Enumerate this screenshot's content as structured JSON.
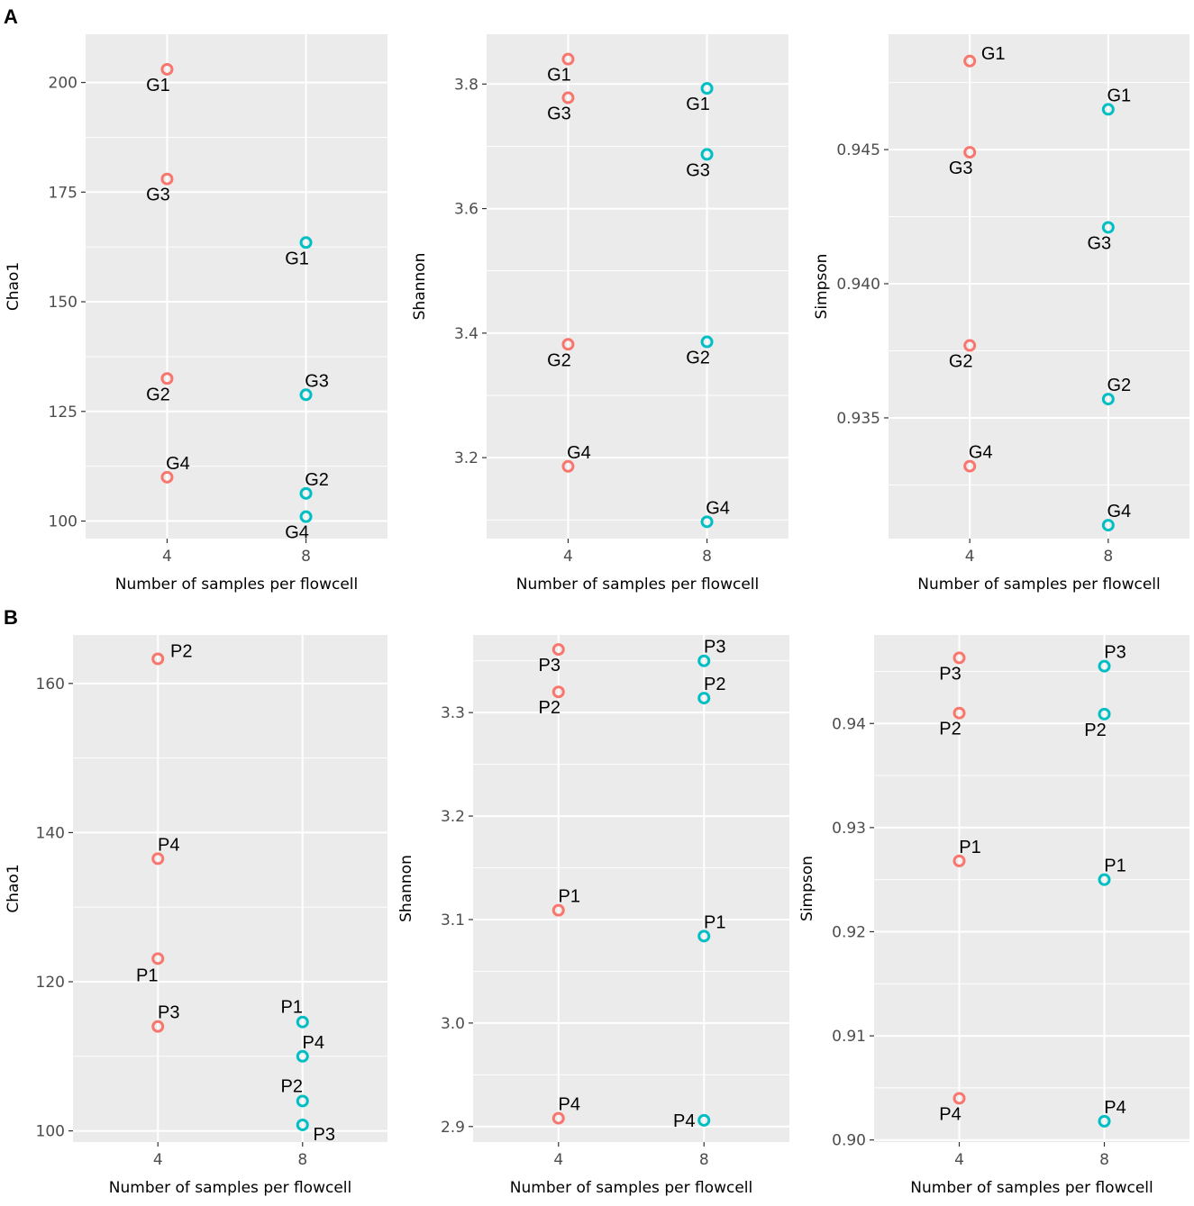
{
  "panels": [
    {
      "letter": "A"
    },
    {
      "letter": "B"
    }
  ],
  "colors": {
    "n4": "#F8766D",
    "n8": "#00BFC4",
    "panel_bg": "#EBEBEB",
    "grid": "#FFFFFF"
  },
  "chart_data": [
    {
      "type": "scatter",
      "panel": "A",
      "xlabel": "Number of samples per flowcell",
      "ylabel": "Chao1",
      "x_categories": [
        "4",
        "8"
      ],
      "ylim": [
        96,
        211
      ],
      "yticks": [
        100,
        125,
        150,
        175,
        200
      ],
      "series": [
        {
          "name": "4",
          "color": "#F8766D",
          "points": [
            {
              "label": "G1",
              "y": 203,
              "label_pos": "below"
            },
            {
              "label": "G3",
              "y": 178,
              "label_pos": "below"
            },
            {
              "label": "G2",
              "y": 132.5,
              "label_pos": "below"
            },
            {
              "label": "G4",
              "y": 110,
              "label_pos": "above"
            }
          ]
        },
        {
          "name": "8",
          "color": "#00BFC4",
          "points": [
            {
              "label": "G1",
              "y": 163.5,
              "label_pos": "below"
            },
            {
              "label": "G3",
              "y": 128.8,
              "label_pos": "above"
            },
            {
              "label": "G2",
              "y": 106.3,
              "label_pos": "above"
            },
            {
              "label": "G4",
              "y": 101,
              "label_pos": "below"
            }
          ]
        }
      ]
    },
    {
      "type": "scatter",
      "panel": "A",
      "xlabel": "Number of samples per flowcell",
      "ylabel": "Shannon",
      "x_categories": [
        "4",
        "8"
      ],
      "ylim": [
        3.07,
        3.88
      ],
      "yticks": [
        3.2,
        3.4,
        3.6,
        3.8
      ],
      "series": [
        {
          "name": "4",
          "color": "#F8766D",
          "points": [
            {
              "label": "G1",
              "y": 3.84,
              "label_pos": "below"
            },
            {
              "label": "G3",
              "y": 3.778,
              "label_pos": "below"
            },
            {
              "label": "G2",
              "y": 3.382,
              "label_pos": "below"
            },
            {
              "label": "G4",
              "y": 3.186,
              "label_pos": "above"
            }
          ]
        },
        {
          "name": "8",
          "color": "#00BFC4",
          "points": [
            {
              "label": "G1",
              "y": 3.793,
              "label_pos": "below"
            },
            {
              "label": "G3",
              "y": 3.687,
              "label_pos": "below"
            },
            {
              "label": "G2",
              "y": 3.386,
              "label_pos": "below"
            },
            {
              "label": "G4",
              "y": 3.097,
              "label_pos": "above"
            }
          ]
        }
      ]
    },
    {
      "type": "scatter",
      "panel": "A",
      "xlabel": "Number of samples per flowcell",
      "ylabel": "Simpson",
      "x_categories": [
        "4",
        "8"
      ],
      "ylim": [
        0.9305,
        0.9493
      ],
      "yticks": [
        0.935,
        0.94,
        0.945
      ],
      "ytick_labels": [
        "0.935",
        "0.940",
        "0.945"
      ],
      "series": [
        {
          "name": "4",
          "color": "#F8766D",
          "points": [
            {
              "label": "G1",
              "y": 0.9483,
              "label_pos": "right"
            },
            {
              "label": "G3",
              "y": 0.9449,
              "label_pos": "below"
            },
            {
              "label": "G2",
              "y": 0.9377,
              "label_pos": "below"
            },
            {
              "label": "G4",
              "y": 0.9332,
              "label_pos": "above"
            }
          ]
        },
        {
          "name": "8",
          "color": "#00BFC4",
          "points": [
            {
              "label": "G1",
              "y": 0.9465,
              "label_pos": "above"
            },
            {
              "label": "G3",
              "y": 0.9421,
              "label_pos": "below"
            },
            {
              "label": "G2",
              "y": 0.9357,
              "label_pos": "above"
            },
            {
              "label": "G4",
              "y": 0.931,
              "label_pos": "above"
            }
          ]
        }
      ]
    },
    {
      "type": "scatter",
      "panel": "B",
      "xlabel": "Number of samples per flowcell",
      "ylabel": "Chao1",
      "x_categories": [
        "4",
        "8"
      ],
      "ylim": [
        98.5,
        166.5
      ],
      "yticks": [
        100,
        120,
        140,
        160
      ],
      "series": [
        {
          "name": "4",
          "color": "#F8766D",
          "points": [
            {
              "label": "P2",
              "y": 163.3,
              "label_pos": "right"
            },
            {
              "label": "P4",
              "y": 136.5,
              "label_pos": "above"
            },
            {
              "label": "P1",
              "y": 123.1,
              "label_pos": "below-left"
            },
            {
              "label": "P3",
              "y": 114,
              "label_pos": "above"
            }
          ]
        },
        {
          "name": "8",
          "color": "#00BFC4",
          "points": [
            {
              "label": "P1",
              "y": 114.6,
              "label_pos": "above-left"
            },
            {
              "label": "P4",
              "y": 110,
              "label_pos": "above"
            },
            {
              "label": "P2",
              "y": 104,
              "label_pos": "above-left"
            },
            {
              "label": "P3",
              "y": 100.8,
              "label_pos": "below-right"
            }
          ]
        }
      ]
    },
    {
      "type": "scatter",
      "panel": "B",
      "xlabel": "Number of samples per flowcell",
      "ylabel": "Shannon",
      "x_categories": [
        "4",
        "8"
      ],
      "ylim": [
        2.885,
        3.375
      ],
      "yticks": [
        2.9,
        3.0,
        3.1,
        3.2,
        3.3
      ],
      "ytick_labels": [
        "2.9",
        "3.0",
        "3.1",
        "3.2",
        "3.3"
      ],
      "series": [
        {
          "name": "4",
          "color": "#F8766D",
          "points": [
            {
              "label": "P3",
              "y": 3.361,
              "label_pos": "below"
            },
            {
              "label": "P2",
              "y": 3.32,
              "label_pos": "below"
            },
            {
              "label": "P1",
              "y": 3.109,
              "label_pos": "above"
            },
            {
              "label": "P4",
              "y": 2.908,
              "label_pos": "above"
            }
          ]
        },
        {
          "name": "8",
          "color": "#00BFC4",
          "points": [
            {
              "label": "P3",
              "y": 3.35,
              "label_pos": "above"
            },
            {
              "label": "P2",
              "y": 3.314,
              "label_pos": "above"
            },
            {
              "label": "P1",
              "y": 3.084,
              "label_pos": "above"
            },
            {
              "label": "P4",
              "y": 2.906,
              "label_pos": "left"
            }
          ]
        }
      ]
    },
    {
      "type": "scatter",
      "panel": "B",
      "xlabel": "Number of samples per flowcell",
      "ylabel": "Simpson",
      "x_categories": [
        "4",
        "8"
      ],
      "ylim": [
        0.8998,
        0.9485
      ],
      "yticks": [
        0.9,
        0.91,
        0.92,
        0.93,
        0.94
      ],
      "ytick_labels": [
        "0.90",
        "0.91",
        "0.92",
        "0.93",
        "0.94"
      ],
      "series": [
        {
          "name": "4",
          "color": "#F8766D",
          "points": [
            {
              "label": "P3",
              "y": 0.9463,
              "label_pos": "below"
            },
            {
              "label": "P2",
              "y": 0.941,
              "label_pos": "below"
            },
            {
              "label": "P1",
              "y": 0.9268,
              "label_pos": "above"
            },
            {
              "label": "P4",
              "y": 0.904,
              "label_pos": "below"
            }
          ]
        },
        {
          "name": "8",
          "color": "#00BFC4",
          "points": [
            {
              "label": "P3",
              "y": 0.9455,
              "label_pos": "above"
            },
            {
              "label": "P2",
              "y": 0.9409,
              "label_pos": "below"
            },
            {
              "label": "P1",
              "y": 0.925,
              "label_pos": "above"
            },
            {
              "label": "P4",
              "y": 0.9018,
              "label_pos": "above"
            }
          ]
        }
      ]
    }
  ]
}
